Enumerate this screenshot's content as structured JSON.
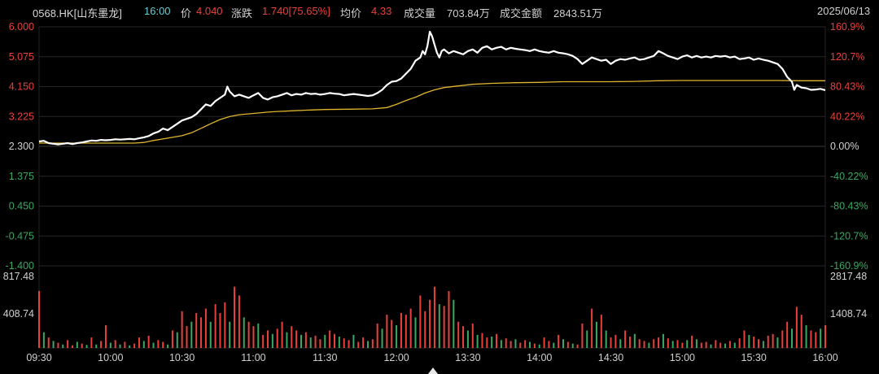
{
  "header": {
    "symbol": "0568.HK[山东墨龙]",
    "time": "16:00",
    "price_label": "价",
    "price": "4.040",
    "change_label": "涨跌",
    "change": "1.740[75.65%]",
    "avg_label": "均价",
    "avg": "4.33",
    "volume_label": "成交量",
    "volume": "703.84万",
    "amount_label": "成交金额",
    "amount": "2843.51万",
    "date": "2025/06/13"
  },
  "colors": {
    "up": "#e8413b",
    "down": "#3aa864",
    "price_line": "#ffffff",
    "avg_line": "#e0b531",
    "grid": "#262626",
    "neutral": "#d0d0d0",
    "time_cyan": "#5fd0d6"
  },
  "price_axis": {
    "left_labels": [
      "6.000",
      "5.075",
      "4.150",
      "3.225",
      "2.300",
      "1.375",
      "0.450",
      "-0.475",
      "-1.400"
    ],
    "right_labels": [
      "160.9%",
      "120.7%",
      "80.43%",
      "40.22%",
      "0.00%",
      "-40.22%",
      "-80.43%",
      "-120.7%",
      "-160.9%"
    ],
    "ylim": [
      -1.4,
      6.0
    ]
  },
  "volume_axis": {
    "left_labels": [
      "817.48",
      "408.74"
    ],
    "right_labels": [
      "2817.48",
      "1408.74"
    ],
    "ylim": [
      0,
      817.48
    ]
  },
  "time_axis": {
    "labels": [
      "09:30",
      "10:00",
      "10:30",
      "11:00",
      "11:30",
      "12:00",
      "13:30",
      "14:00",
      "14:30",
      "15:00",
      "15:30",
      "16:00"
    ]
  },
  "chart_data": {
    "type": "line",
    "series": [],
    "price_points": [
      [
        0,
        2.45
      ],
      [
        2,
        2.47
      ],
      [
        4,
        2.4
      ],
      [
        6,
        2.38
      ],
      [
        8,
        2.36
      ],
      [
        10,
        2.38
      ],
      [
        12,
        2.4
      ],
      [
        14,
        2.37
      ],
      [
        16,
        2.4
      ],
      [
        18,
        2.42
      ],
      [
        20,
        2.45
      ],
      [
        22,
        2.48
      ],
      [
        24,
        2.47
      ],
      [
        26,
        2.5
      ],
      [
        28,
        2.49
      ],
      [
        30,
        2.5
      ],
      [
        32,
        2.52
      ],
      [
        34,
        2.51
      ],
      [
        36,
        2.52
      ],
      [
        38,
        2.53
      ],
      [
        40,
        2.52
      ],
      [
        42,
        2.55
      ],
      [
        44,
        2.58
      ],
      [
        46,
        2.62
      ],
      [
        48,
        2.7
      ],
      [
        50,
        2.75
      ],
      [
        52,
        2.85
      ],
      [
        54,
        2.8
      ],
      [
        56,
        2.9
      ],
      [
        58,
        3.0
      ],
      [
        60,
        3.1
      ],
      [
        62,
        3.15
      ],
      [
        64,
        3.2
      ],
      [
        66,
        3.3
      ],
      [
        68,
        3.45
      ],
      [
        70,
        3.6
      ],
      [
        72,
        3.55
      ],
      [
        74,
        3.7
      ],
      [
        76,
        3.8
      ],
      [
        78,
        3.9
      ],
      [
        79,
        4.15
      ],
      [
        80,
        4.0
      ],
      [
        82,
        3.85
      ],
      [
        84,
        3.9
      ],
      [
        86,
        3.85
      ],
      [
        88,
        3.8
      ],
      [
        90,
        3.88
      ],
      [
        92,
        3.95
      ],
      [
        94,
        3.8
      ],
      [
        96,
        3.75
      ],
      [
        98,
        3.82
      ],
      [
        100,
        3.85
      ],
      [
        102,
        3.9
      ],
      [
        104,
        3.95
      ],
      [
        106,
        3.88
      ],
      [
        108,
        3.92
      ],
      [
        110,
        3.9
      ],
      [
        112,
        3.95
      ],
      [
        114,
        3.92
      ],
      [
        116,
        3.93
      ],
      [
        118,
        3.9
      ],
      [
        120,
        3.92
      ],
      [
        122,
        3.95
      ],
      [
        124,
        3.93
      ],
      [
        126,
        3.92
      ],
      [
        128,
        3.88
      ],
      [
        130,
        3.9
      ],
      [
        132,
        3.92
      ],
      [
        134,
        3.9
      ],
      [
        136,
        3.88
      ],
      [
        138,
        3.86
      ],
      [
        140,
        3.88
      ],
      [
        142,
        3.95
      ],
      [
        144,
        4.05
      ],
      [
        146,
        4.2
      ],
      [
        148,
        4.3
      ],
      [
        150,
        4.32
      ],
      [
        152,
        4.4
      ],
      [
        154,
        4.55
      ],
      [
        156,
        4.7
      ],
      [
        158,
        4.95
      ],
      [
        160,
        5.05
      ],
      [
        161,
        5.25
      ],
      [
        162,
        5.15
      ],
      [
        163,
        5.4
      ],
      [
        164,
        5.85
      ],
      [
        165,
        5.7
      ],
      [
        166,
        5.45
      ],
      [
        167,
        5.2
      ],
      [
        168,
        5.05
      ],
      [
        169,
        5.25
      ],
      [
        170,
        5.3
      ],
      [
        172,
        5.18
      ],
      [
        174,
        5.25
      ],
      [
        176,
        5.2
      ],
      [
        178,
        5.15
      ],
      [
        180,
        5.25
      ],
      [
        182,
        5.3
      ],
      [
        184,
        5.2
      ],
      [
        186,
        5.35
      ],
      [
        188,
        5.4
      ],
      [
        190,
        5.3
      ],
      [
        192,
        5.35
      ],
      [
        194,
        5.38
      ],
      [
        196,
        5.3
      ],
      [
        198,
        5.35
      ],
      [
        200,
        5.32
      ],
      [
        202,
        5.3
      ],
      [
        204,
        5.28
      ],
      [
        206,
        5.25
      ],
      [
        208,
        5.3
      ],
      [
        210,
        5.25
      ],
      [
        212,
        5.22
      ],
      [
        214,
        5.2
      ],
      [
        216,
        5.25
      ],
      [
        218,
        5.2
      ],
      [
        220,
        5.18
      ],
      [
        222,
        5.15
      ],
      [
        224,
        5.1
      ],
      [
        226,
        5.0
      ],
      [
        228,
        4.85
      ],
      [
        230,
        4.95
      ],
      [
        232,
        5.05
      ],
      [
        234,
        5.0
      ],
      [
        236,
        4.95
      ],
      [
        238,
        4.98
      ],
      [
        240,
        4.85
      ],
      [
        242,
        4.95
      ],
      [
        244,
        5.0
      ],
      [
        246,
        4.98
      ],
      [
        248,
        5.02
      ],
      [
        250,
        5.05
      ],
      [
        252,
        4.98
      ],
      [
        254,
        5.0
      ],
      [
        256,
        5.05
      ],
      [
        258,
        5.1
      ],
      [
        260,
        5.25
      ],
      [
        262,
        5.18
      ],
      [
        264,
        5.1
      ],
      [
        266,
        5.05
      ],
      [
        268,
        5.0
      ],
      [
        270,
        5.08
      ],
      [
        272,
        5.12
      ],
      [
        274,
        5.05
      ],
      [
        276,
        5.1
      ],
      [
        278,
        5.05
      ],
      [
        280,
        5.08
      ],
      [
        282,
        5.05
      ],
      [
        284,
        5.1
      ],
      [
        286,
        5.08
      ],
      [
        288,
        5.1
      ],
      [
        290,
        5.05
      ],
      [
        292,
        5.08
      ],
      [
        294,
        5.0
      ],
      [
        296,
        5.02
      ],
      [
        298,
        5.05
      ],
      [
        300,
        4.98
      ],
      [
        302,
        5.02
      ],
      [
        304,
        4.98
      ],
      [
        306,
        4.95
      ],
      [
        308,
        4.9
      ],
      [
        310,
        4.85
      ],
      [
        312,
        4.7
      ],
      [
        314,
        4.45
      ],
      [
        316,
        4.3
      ],
      [
        317,
        4.05
      ],
      [
        318,
        4.2
      ],
      [
        320,
        4.12
      ],
      [
        322,
        4.1
      ],
      [
        324,
        4.05
      ],
      [
        326,
        4.06
      ],
      [
        328,
        4.08
      ],
      [
        330,
        4.04
      ]
    ],
    "avg_points": [
      [
        0,
        2.4
      ],
      [
        10,
        2.4
      ],
      [
        20,
        2.4
      ],
      [
        30,
        2.4
      ],
      [
        40,
        2.4
      ],
      [
        44,
        2.42
      ],
      [
        48,
        2.48
      ],
      [
        52,
        2.53
      ],
      [
        56,
        2.58
      ],
      [
        60,
        2.63
      ],
      [
        64,
        2.72
      ],
      [
        68,
        2.86
      ],
      [
        72,
        3.0
      ],
      [
        76,
        3.13
      ],
      [
        80,
        3.22
      ],
      [
        84,
        3.28
      ],
      [
        90,
        3.32
      ],
      [
        96,
        3.36
      ],
      [
        100,
        3.38
      ],
      [
        106,
        3.4
      ],
      [
        112,
        3.42
      ],
      [
        120,
        3.44
      ],
      [
        130,
        3.45
      ],
      [
        140,
        3.46
      ],
      [
        146,
        3.5
      ],
      [
        150,
        3.6
      ],
      [
        154,
        3.72
      ],
      [
        158,
        3.82
      ],
      [
        162,
        3.95
      ],
      [
        166,
        4.05
      ],
      [
        170,
        4.12
      ],
      [
        176,
        4.17
      ],
      [
        182,
        4.22
      ],
      [
        190,
        4.25
      ],
      [
        200,
        4.27
      ],
      [
        210,
        4.28
      ],
      [
        220,
        4.3
      ],
      [
        230,
        4.3
      ],
      [
        240,
        4.3
      ],
      [
        250,
        4.31
      ],
      [
        260,
        4.33
      ],
      [
        270,
        4.34
      ],
      [
        280,
        4.34
      ],
      [
        290,
        4.34
      ],
      [
        300,
        4.34
      ],
      [
        310,
        4.34
      ],
      [
        320,
        4.33
      ],
      [
        330,
        4.33
      ]
    ],
    "volume_bars": [
      [
        0,
        650,
        1
      ],
      [
        2,
        180,
        0
      ],
      [
        4,
        120,
        1
      ],
      [
        6,
        80,
        0
      ],
      [
        8,
        60,
        1
      ],
      [
        10,
        40,
        0
      ],
      [
        12,
        90,
        1
      ],
      [
        14,
        30,
        1
      ],
      [
        16,
        70,
        0
      ],
      [
        18,
        50,
        1
      ],
      [
        20,
        35,
        0
      ],
      [
        22,
        120,
        1
      ],
      [
        24,
        40,
        0
      ],
      [
        26,
        80,
        1
      ],
      [
        28,
        260,
        1
      ],
      [
        30,
        60,
        0
      ],
      [
        32,
        90,
        1
      ],
      [
        34,
        40,
        0
      ],
      [
        36,
        70,
        1
      ],
      [
        38,
        30,
        0
      ],
      [
        40,
        50,
        1
      ],
      [
        42,
        120,
        1
      ],
      [
        44,
        80,
        0
      ],
      [
        46,
        140,
        1
      ],
      [
        48,
        60,
        0
      ],
      [
        50,
        90,
        1
      ],
      [
        52,
        70,
        1
      ],
      [
        54,
        40,
        0
      ],
      [
        56,
        200,
        1
      ],
      [
        58,
        180,
        0
      ],
      [
        60,
        420,
        1
      ],
      [
        62,
        250,
        1
      ],
      [
        64,
        300,
        0
      ],
      [
        66,
        400,
        1
      ],
      [
        68,
        350,
        1
      ],
      [
        70,
        450,
        1
      ],
      [
        72,
        300,
        0
      ],
      [
        74,
        500,
        1
      ],
      [
        76,
        400,
        1
      ],
      [
        78,
        520,
        1
      ],
      [
        80,
        300,
        0
      ],
      [
        82,
        700,
        1
      ],
      [
        84,
        600,
        1
      ],
      [
        86,
        350,
        0
      ],
      [
        88,
        300,
        1
      ],
      [
        90,
        250,
        1
      ],
      [
        92,
        280,
        0
      ],
      [
        94,
        150,
        1
      ],
      [
        96,
        200,
        1
      ],
      [
        98,
        160,
        0
      ],
      [
        100,
        220,
        1
      ],
      [
        102,
        300,
        1
      ],
      [
        104,
        180,
        0
      ],
      [
        106,
        250,
        1
      ],
      [
        108,
        200,
        1
      ],
      [
        110,
        150,
        0
      ],
      [
        112,
        180,
        1
      ],
      [
        114,
        120,
        0
      ],
      [
        116,
        140,
        1
      ],
      [
        118,
        100,
        1
      ],
      [
        120,
        150,
        0
      ],
      [
        122,
        200,
        1
      ],
      [
        124,
        160,
        1
      ],
      [
        126,
        130,
        0
      ],
      [
        128,
        110,
        1
      ],
      [
        130,
        90,
        1
      ],
      [
        132,
        150,
        0
      ],
      [
        134,
        70,
        1
      ],
      [
        136,
        120,
        1
      ],
      [
        138,
        80,
        0
      ],
      [
        140,
        100,
        1
      ],
      [
        142,
        280,
        1
      ],
      [
        144,
        220,
        0
      ],
      [
        146,
        380,
        1
      ],
      [
        148,
        320,
        1
      ],
      [
        150,
        260,
        0
      ],
      [
        152,
        400,
        1
      ],
      [
        154,
        380,
        1
      ],
      [
        156,
        450,
        1
      ],
      [
        158,
        350,
        0
      ],
      [
        160,
        600,
        1
      ],
      [
        162,
        420,
        1
      ],
      [
        164,
        550,
        1
      ],
      [
        166,
        700,
        1
      ],
      [
        168,
        500,
        0
      ],
      [
        170,
        480,
        1
      ],
      [
        172,
        650,
        1
      ],
      [
        174,
        550,
        0
      ],
      [
        176,
        300,
        1
      ],
      [
        178,
        250,
        1
      ],
      [
        180,
        200,
        0
      ],
      [
        182,
        280,
        1
      ],
      [
        184,
        150,
        0
      ],
      [
        186,
        170,
        1
      ],
      [
        188,
        120,
        1
      ],
      [
        190,
        130,
        0
      ],
      [
        192,
        160,
        1
      ],
      [
        194,
        90,
        0
      ],
      [
        196,
        110,
        1
      ],
      [
        198,
        80,
        1
      ],
      [
        200,
        100,
        0
      ],
      [
        202,
        60,
        1
      ],
      [
        204,
        90,
        1
      ],
      [
        206,
        70,
        0
      ],
      [
        208,
        50,
        1
      ],
      [
        210,
        40,
        0
      ],
      [
        212,
        120,
        1
      ],
      [
        214,
        80,
        1
      ],
      [
        216,
        60,
        0
      ],
      [
        218,
        150,
        1
      ],
      [
        220,
        100,
        0
      ],
      [
        222,
        70,
        1
      ],
      [
        224,
        50,
        0
      ],
      [
        226,
        40,
        1
      ],
      [
        228,
        280,
        1
      ],
      [
        230,
        200,
        0
      ],
      [
        232,
        450,
        1
      ],
      [
        234,
        300,
        0
      ],
      [
        236,
        380,
        1
      ],
      [
        238,
        200,
        0
      ],
      [
        240,
        120,
        1
      ],
      [
        242,
        150,
        1
      ],
      [
        244,
        100,
        0
      ],
      [
        246,
        200,
        1
      ],
      [
        248,
        130,
        1
      ],
      [
        250,
        160,
        0
      ],
      [
        252,
        100,
        1
      ],
      [
        254,
        80,
        1
      ],
      [
        256,
        60,
        0
      ],
      [
        258,
        100,
        1
      ],
      [
        260,
        120,
        1
      ],
      [
        262,
        160,
        0
      ],
      [
        264,
        110,
        1
      ],
      [
        266,
        80,
        0
      ],
      [
        268,
        90,
        1
      ],
      [
        270,
        60,
        1
      ],
      [
        272,
        90,
        0
      ],
      [
        274,
        140,
        1
      ],
      [
        276,
        100,
        0
      ],
      [
        278,
        60,
        1
      ],
      [
        280,
        70,
        1
      ],
      [
        282,
        40,
        0
      ],
      [
        284,
        90,
        1
      ],
      [
        286,
        60,
        1
      ],
      [
        288,
        50,
        0
      ],
      [
        290,
        80,
        1
      ],
      [
        292,
        60,
        0
      ],
      [
        294,
        110,
        1
      ],
      [
        296,
        200,
        1
      ],
      [
        298,
        150,
        0
      ],
      [
        300,
        130,
        1
      ],
      [
        302,
        100,
        1
      ],
      [
        304,
        80,
        0
      ],
      [
        306,
        140,
        1
      ],
      [
        308,
        160,
        1
      ],
      [
        310,
        120,
        0
      ],
      [
        312,
        200,
        1
      ],
      [
        314,
        300,
        1
      ],
      [
        316,
        220,
        0
      ],
      [
        318,
        470,
        1
      ],
      [
        320,
        380,
        1
      ],
      [
        322,
        260,
        0
      ],
      [
        324,
        200,
        1
      ],
      [
        326,
        180,
        1
      ],
      [
        328,
        220,
        0
      ],
      [
        330,
        260,
        1
      ]
    ]
  }
}
